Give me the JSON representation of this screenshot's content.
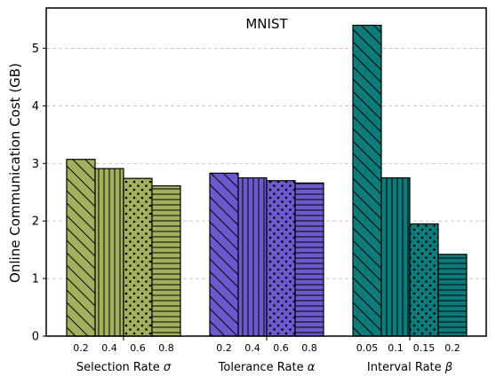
{
  "chart_data": {
    "type": "bar",
    "title": "MNIST",
    "ylabel": "Online Communication Cost (GB)",
    "ylim": [
      0,
      5.7
    ],
    "yticks": [
      0,
      1,
      2,
      3,
      4,
      5
    ],
    "grid": true,
    "groups": [
      {
        "label": "Selection Rate",
        "symbol": "σ",
        "color": "#a3b15f",
        "categories": [
          "0.2",
          "0.4",
          "0.6",
          "0.8"
        ],
        "values": [
          3.07,
          2.91,
          2.74,
          2.61
        ]
      },
      {
        "label": "Tolerance Rate",
        "symbol": "α",
        "color": "#6a5acd",
        "categories": [
          "0.2",
          "0.4",
          "0.6",
          "0.8"
        ],
        "values": [
          2.83,
          2.75,
          2.7,
          2.66
        ]
      },
      {
        "label": "Interval Rate",
        "symbol": "β",
        "color": "#0e7b7b",
        "categories": [
          "0.05",
          "0.1",
          "0.15",
          "0.2"
        ],
        "values": [
          5.4,
          2.75,
          1.95,
          1.42
        ]
      }
    ],
    "hatches": [
      "backslash",
      "vertical",
      "dots",
      "horizontal"
    ]
  }
}
